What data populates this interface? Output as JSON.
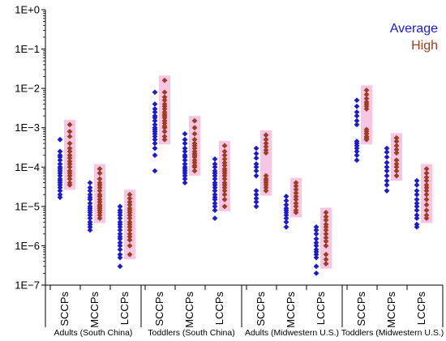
{
  "chart_data": {
    "type": "scatter",
    "y_scale": "log",
    "ylim": [
      1e-07,
      1
    ],
    "y_ticks": [
      {
        "value": 1,
        "label": "1E+0"
      },
      {
        "value": 0.1,
        "label": "1E−1"
      },
      {
        "value": 0.01,
        "label": "1E−2"
      },
      {
        "value": 0.001,
        "label": "1E−3"
      },
      {
        "value": 0.0001,
        "label": "1E−4"
      },
      {
        "value": 1e-05,
        "label": "1E−5"
      },
      {
        "value": 1e-06,
        "label": "1E−6"
      },
      {
        "value": 1e-07,
        "label": "1E−7"
      }
    ],
    "grid": false,
    "legend": {
      "placement": "top-right",
      "entries": [
        {
          "name": "Average",
          "color": "#1a1ad6"
        },
        {
          "name": "High",
          "color": "#a03c1e"
        }
      ]
    },
    "highlight_color": "#f7c6e4",
    "groups": [
      {
        "label": "Adults (South China)",
        "categories": [
          {
            "label": "SCCPs",
            "average": [
              0.0005,
              0.00025,
              0.0002,
              0.00018,
              0.00015,
              0.00012,
              0.0001,
              9e-05,
              8e-05,
              7e-05,
              6e-05,
              5e-05,
              4.5e-05,
              4e-05,
              3.5e-05,
              3e-05,
              2.5e-05,
              2e-05,
              1.7e-05
            ],
            "high": [
              0.0012,
              0.0008,
              0.0006,
              0.0004,
              0.0003,
              0.00025,
              0.0002,
              0.00017,
              0.00014,
              0.00012,
              0.0001,
              8e-05,
              7e-05,
              6e-05,
              5e-05,
              4e-05,
              3.5e-05
            ]
          },
          {
            "label": "MCCPs",
            "average": [
              4e-05,
              3e-05,
              2.5e-05,
              2e-05,
              1.7e-05,
              1.5e-05,
              1.2e-05,
              1e-05,
              9e-06,
              8e-06,
              7e-06,
              6e-06,
              5e-06,
              4e-06,
              3.5e-06,
              3e-06,
              2.5e-06
            ],
            "high": [
              9e-05,
              7e-05,
              5e-05,
              4e-05,
              3.5e-05,
              3e-05,
              2.5e-05,
              2e-05,
              1.8e-05,
              1.5e-05,
              1.3e-05,
              1.1e-05,
              1e-05,
              9e-06,
              8e-06,
              7e-06,
              6e-06,
              5e-06
            ]
          },
          {
            "label": "LCCPs",
            "average": [
              1e-05,
              8e-06,
              7e-06,
              6e-06,
              5e-06,
              4e-06,
              3.5e-06,
              3e-06,
              2.5e-06,
              2e-06,
              1.7e-06,
              1.5e-06,
              1.2e-06,
              1e-06,
              8e-07,
              6e-07,
              5e-07,
              3e-07
            ],
            "high": [
              2e-05,
              1.6e-05,
              1.3e-05,
              1.1e-05,
              9e-06,
              8e-06,
              7e-06,
              6e-06,
              5e-06,
              4e-06,
              3.5e-06,
              3e-06,
              2.5e-06,
              2e-06,
              1.7e-06,
              1.4e-06,
              1e-06,
              6e-07
            ]
          }
        ]
      },
      {
        "label": "Toddlers (South China)",
        "categories": [
          {
            "label": "SCCPs",
            "average": [
              0.008,
              0.004,
              0.003,
              0.0025,
              0.002,
              0.0018,
              0.0015,
              0.0012,
              0.001,
              0.0009,
              0.0008,
              0.0007,
              0.0006,
              0.0005,
              0.0004,
              0.0003,
              0.0002,
              8e-05
            ],
            "high": [
              0.016,
              0.008,
              0.006,
              0.005,
              0.004,
              0.0035,
              0.003,
              0.0025,
              0.0022,
              0.002,
              0.0018,
              0.0015,
              0.0013,
              0.0011,
              0.001,
              0.0008,
              0.0006,
              0.0005
            ]
          },
          {
            "label": "MCCPs",
            "average": [
              0.0007,
              0.0005,
              0.0004,
              0.0003,
              0.00025,
              0.0002,
              0.00018,
              0.00015,
              0.00012,
              0.0001,
              9e-05,
              8e-05,
              7e-05,
              6e-05,
              5e-05,
              4e-05
            ],
            "high": [
              0.0015,
              0.001,
              0.0007,
              0.0005,
              0.0004,
              0.00035,
              0.0003,
              0.00025,
              0.00022,
              0.0002,
              0.00018,
              0.00015,
              0.00013,
              0.00011,
              0.0001,
              8e-05
            ]
          },
          {
            "label": "LCCPs",
            "average": [
              0.00016,
              0.00012,
              0.0001,
              8e-05,
              7e-05,
              6e-05,
              5e-05,
              4e-05,
              3.5e-05,
              3e-05,
              2.5e-05,
              2e-05,
              1.7e-05,
              1.5e-05,
              1.2e-05,
              1e-05,
              8e-06,
              5e-06
            ],
            "high": [
              0.00035,
              0.00025,
              0.0002,
              0.00016,
              0.00013,
              0.00011,
              9e-05,
              8e-05,
              7e-05,
              6e-05,
              5e-05,
              4e-05,
              3.5e-05,
              3e-05,
              2.5e-05,
              2e-05,
              1.5e-05,
              1e-05
            ]
          }
        ]
      },
      {
        "label": "Adults (Midwestern U.S.)",
        "categories": [
          {
            "label": "SCCPs",
            "average": [
              0.0003,
              0.00022,
              0.00017,
              0.00012,
              0.0001,
              8e-05,
              6e-05,
              2.5e-05,
              2e-05,
              1.6e-05,
              1.3e-05,
              1e-05
            ],
            "high": [
              0.00065,
              0.0005,
              0.0004,
              0.00033,
              0.00027,
              0.00023,
              6e-05,
              5e-05,
              4.5e-05,
              4e-05,
              3.5e-05,
              3e-05,
              2.5e-05
            ]
          },
          {
            "label": "MCCPs",
            "average": [
              1.8e-05,
              1.4e-05,
              1.1e-05,
              9e-06,
              8e-06,
              7e-06,
              6e-06,
              5e-06,
              4e-06,
              3e-06
            ],
            "high": [
              4e-05,
              3.3e-05,
              2.7e-05,
              2.2e-05,
              1.8e-05,
              1.5e-05,
              1.2e-05,
              1e-05,
              8e-06,
              7e-06
            ]
          },
          {
            "label": "LCCPs",
            "average": [
              3e-06,
              2.5e-06,
              2e-06,
              1.5e-06,
              1.2e-06,
              1e-06,
              8e-07,
              7e-07,
              6e-07,
              5e-07,
              3e-07,
              2e-07
            ],
            "high": [
              7e-06,
              5.5e-06,
              4.5e-06,
              3.5e-06,
              3e-06,
              2.5e-06,
              2e-06,
              1.6e-06,
              1.3e-06,
              1e-06,
              6e-07,
              4.5e-07,
              3.5e-07
            ]
          }
        ]
      },
      {
        "label": "Toddlers (Midwestern U.S.)",
        "categories": [
          {
            "label": "SCCPs",
            "average": [
              0.005,
              0.0035,
              0.0025,
              0.002,
              0.0015,
              0.0012,
              0.00045,
              0.0004,
              0.00035,
              0.0003,
              0.00025,
              0.0002,
              0.00015
            ],
            "high": [
              0.009,
              0.007,
              0.0055,
              0.0045,
              0.004,
              0.0035,
              0.003,
              0.0009,
              0.0008,
              0.0007,
              0.0006,
              0.00055,
              0.0005
            ]
          },
          {
            "label": "MCCPs",
            "average": [
              0.0003,
              0.00024,
              0.00018,
              0.00013,
              0.0001,
              8e-05,
              6e-05,
              4.5e-05,
              3.5e-05,
              2.5e-05
            ],
            "high": [
              0.00055,
              0.00045,
              0.00035,
              0.00028,
              0.00023,
              0.00015,
              0.00012,
              0.0001,
              8e-05,
              6e-05
            ]
          },
          {
            "label": "LCCPs",
            "average": [
              4.5e-05,
              3.5e-05,
              2.5e-05,
              2e-05,
              1.5e-05,
              1.2e-05,
              1e-05,
              8e-06,
              6e-06,
              5e-06,
              3.5e-06,
              3e-06
            ],
            "high": [
              9e-05,
              7e-05,
              5.5e-05,
              4.5e-05,
              3.5e-05,
              3e-05,
              2.5e-05,
              2e-05,
              1.5e-05,
              1.1e-05,
              8e-06,
              6e-06,
              5e-06
            ]
          }
        ]
      }
    ]
  }
}
